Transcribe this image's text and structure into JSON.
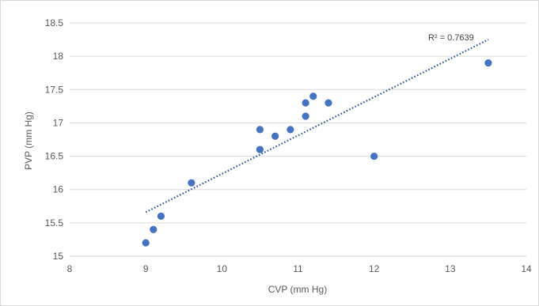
{
  "chart_data": {
    "type": "scatter",
    "title": "",
    "xlabel": "CVP (mm Hg)",
    "ylabel": "PVP (mm Hg)",
    "xlim": [
      8,
      14
    ],
    "ylim": [
      15,
      18.5
    ],
    "x_ticks": [
      8,
      9,
      10,
      11,
      12,
      13,
      14
    ],
    "y_ticks": [
      15,
      15.5,
      16,
      16.5,
      17,
      17.5,
      18,
      18.5
    ],
    "x_tick_labels": [
      "8",
      "9",
      "10",
      "11",
      "12",
      "13",
      "14"
    ],
    "y_tick_labels": [
      "15",
      "15.5",
      "16",
      "16.5",
      "17",
      "17.5",
      "18",
      "18.5"
    ],
    "grid": "horizontal",
    "legend": "none",
    "series": [
      {
        "x": [
          9.0,
          9.1,
          9.2,
          9.6,
          10.5,
          10.5,
          10.7,
          10.9,
          11.1,
          11.1,
          11.2,
          11.4,
          12.0,
          13.5
        ],
        "y": [
          15.2,
          15.4,
          15.6,
          16.1,
          16.6,
          16.9,
          16.8,
          16.9,
          17.1,
          17.3,
          17.4,
          17.3,
          16.5,
          17.9
        ],
        "color": "#4472c4"
      }
    ],
    "trendline": {
      "type": "linear",
      "x_range": [
        9.0,
        13.5
      ],
      "y_start": 15.66,
      "y_end": 18.25,
      "style": "dotted",
      "color": "#2e5c9c",
      "label": "R² = 0.7639"
    }
  }
}
